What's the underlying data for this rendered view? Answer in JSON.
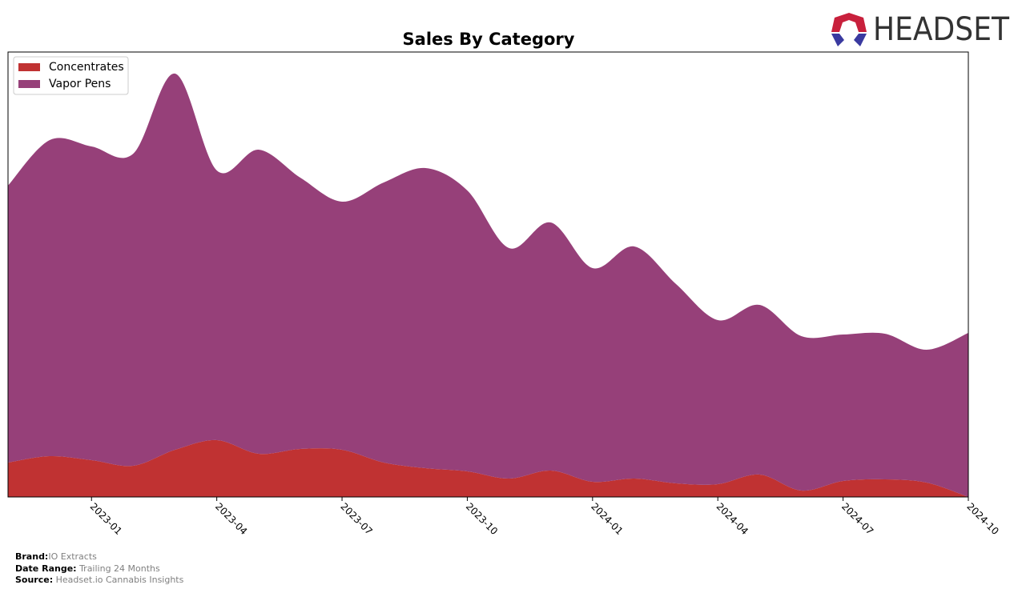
{
  "chart_data": {
    "type": "stacked-area",
    "title": "Sales By Category",
    "x": [
      "2022-11",
      "2022-12",
      "2023-01",
      "2023-02",
      "2023-03",
      "2023-04",
      "2023-05",
      "2023-06",
      "2023-07",
      "2023-08",
      "2023-09",
      "2023-10",
      "2023-11",
      "2023-12",
      "2024-01",
      "2024-02",
      "2024-03",
      "2024-04",
      "2024-05",
      "2024-06",
      "2024-07",
      "2024-08",
      "2024-09",
      "2024-10"
    ],
    "xticks": [
      "2023-01",
      "2023-04",
      "2023-07",
      "2023-10",
      "2024-01",
      "2024-04",
      "2024-07",
      "2024-10"
    ],
    "ylim": [
      0,
      556
    ],
    "legend": "upper left",
    "series": [
      {
        "name": "Concentrates",
        "color": "#c03232",
        "values": [
          43,
          51,
          46,
          39,
          59,
          71,
          54,
          60,
          59,
          43,
          36,
          32,
          23,
          33,
          19,
          23,
          17,
          16,
          28,
          8,
          20,
          22,
          18,
          0
        ]
      },
      {
        "name": "Vapor Pens",
        "color": "#964079",
        "values": [
          346,
          395,
          392,
          390,
          470,
          337,
          380,
          339,
          310,
          350,
          375,
          351,
          288,
          310,
          267,
          290,
          249,
          205,
          212,
          193,
          183,
          182,
          166,
          205
        ]
      }
    ]
  },
  "logo": "HEADSET",
  "footer": {
    "brand_label": "Brand:",
    "brand": "IO Extracts",
    "range_label": "Date Range:",
    "range": "Trailing 24 Months",
    "source_label": "Source:",
    "source": "Headset.io Cannabis Insights"
  }
}
